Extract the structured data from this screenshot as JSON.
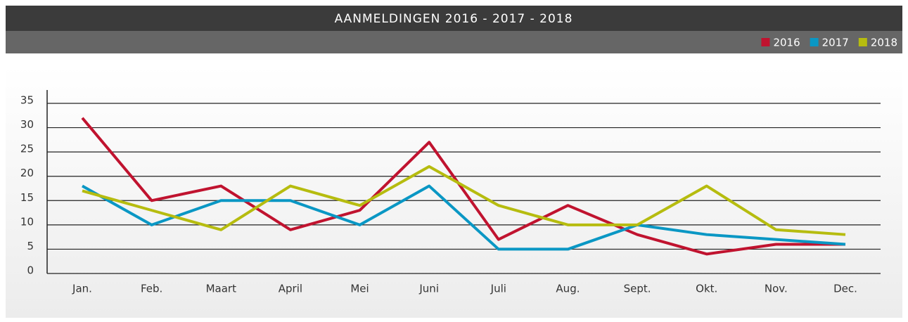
{
  "chart_data": {
    "type": "line",
    "title": "AANMELDINGEN 2016 - 2017 - 2018",
    "categories": [
      "Jan.",
      "Feb.",
      "Maart",
      "April",
      "Mei",
      "Juni",
      "Juli",
      "Aug.",
      "Sept.",
      "Okt.",
      "Nov.",
      "Dec."
    ],
    "series": [
      {
        "name": "2016",
        "color": "#c0132f",
        "values": [
          32,
          15,
          18,
          9,
          13,
          27,
          7,
          14,
          8,
          4,
          6,
          6
        ]
      },
      {
        "name": "2017",
        "color": "#0a97c4",
        "values": [
          18,
          10,
          15,
          15,
          10,
          18,
          5,
          5,
          10,
          8,
          7,
          6
        ]
      },
      {
        "name": "2018",
        "color": "#b6bc0f",
        "values": [
          17,
          13,
          9,
          18,
          14,
          22,
          14,
          10,
          10,
          18,
          9,
          8
        ]
      }
    ],
    "ylim": [
      0,
      35
    ],
    "yticks": [
      0,
      5,
      10,
      15,
      20,
      25,
      30,
      35
    ],
    "grid": true,
    "legend": "top-right"
  }
}
